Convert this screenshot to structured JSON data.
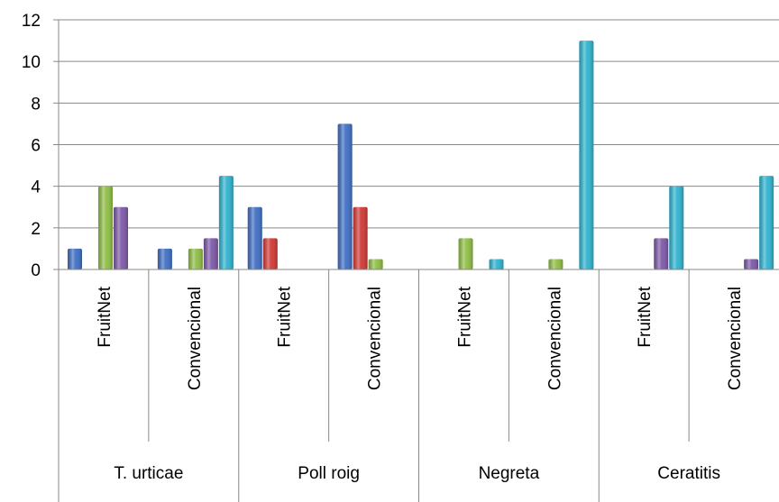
{
  "chart_data": {
    "type": "bar",
    "title": "",
    "xlabel": "",
    "ylabel": "",
    "ylim": [
      0,
      12
    ],
    "yticks": [
      "0",
      "2",
      "4",
      "6",
      "8",
      "10",
      "12"
    ],
    "grid": true,
    "legend": "none",
    "groups": [
      {
        "label": "T. urticae",
        "categories": [
          "FruitNet",
          "Convencional"
        ]
      },
      {
        "label": "Poll roig",
        "categories": [
          "FruitNet",
          "Convencional"
        ]
      },
      {
        "label": "Negreta",
        "categories": [
          "FruitNet",
          "Convencional"
        ]
      },
      {
        "label": "Ceratitis",
        "categories": [
          "FruitNet",
          "Convencional"
        ]
      }
    ],
    "categories": [
      "FruitNet",
      "Convencional",
      "FruitNet",
      "Convencional",
      "FruitNet",
      "Convencional",
      "FruitNet",
      "Convencional"
    ],
    "series": [
      {
        "color": "#3f6fc4",
        "values": [
          1,
          1,
          3,
          7,
          0,
          0,
          0,
          0
        ]
      },
      {
        "color": "#d03a35",
        "values": [
          0,
          0,
          1.5,
          3,
          0,
          0,
          0,
          0
        ]
      },
      {
        "color": "#8fbe45",
        "values": [
          4,
          1,
          0,
          0.5,
          1.5,
          0.5,
          0,
          0
        ]
      },
      {
        "color": "#7d58a8",
        "values": [
          3,
          1.5,
          0,
          0,
          0,
          0,
          1.5,
          0.5
        ]
      },
      {
        "color": "#2fb3cf",
        "values": [
          0,
          4.5,
          0,
          0,
          0.5,
          11,
          4,
          4.5
        ]
      }
    ]
  }
}
